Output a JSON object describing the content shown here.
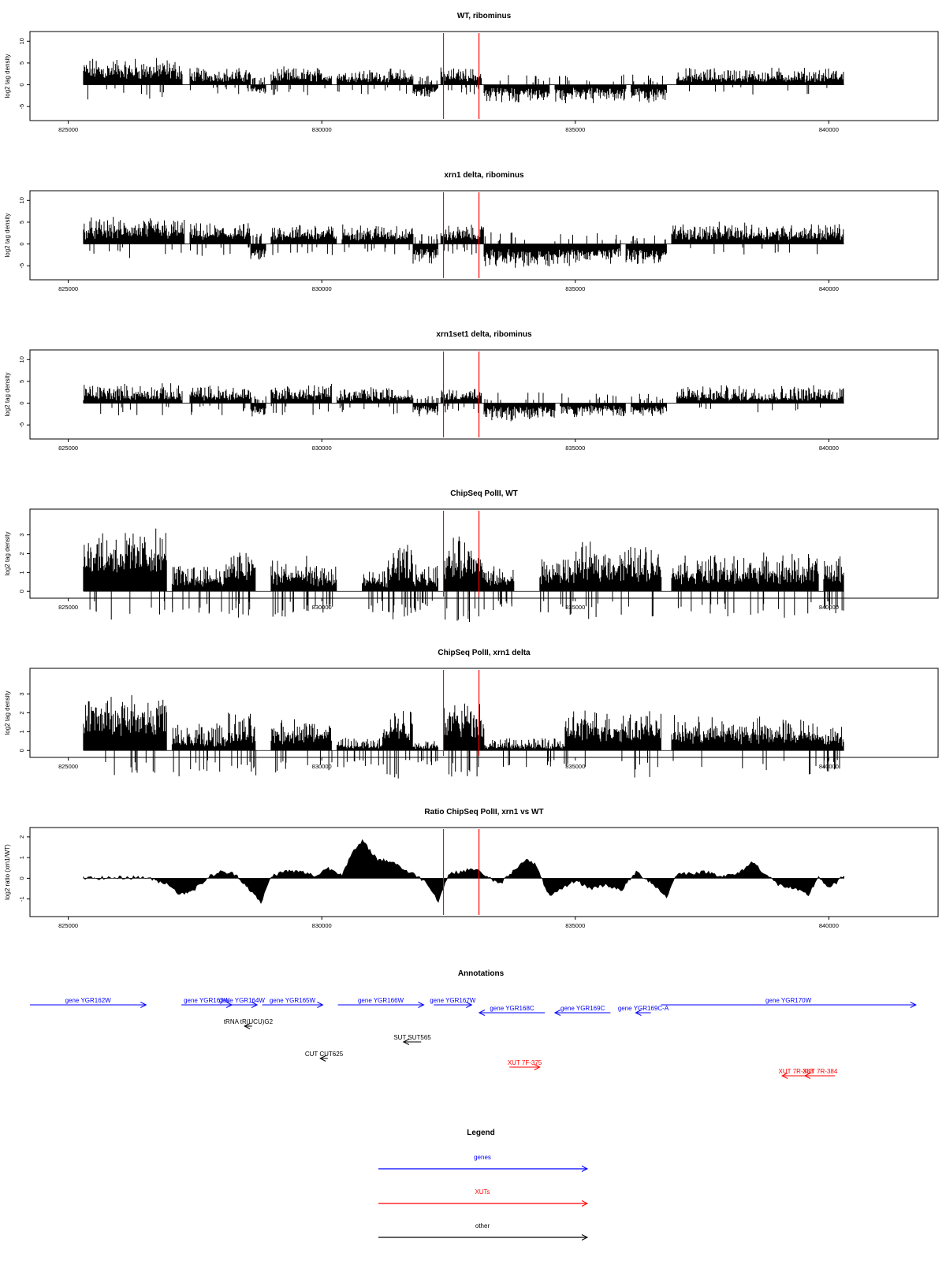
{
  "chart_data": [
    {
      "type": "bar",
      "title": "WT, ribominus",
      "ylabel": "log2 tag density",
      "xlim": [
        824400,
        842000
      ],
      "ylim": [
        -7.5,
        11.5
      ],
      "x_ticks": [
        "825000",
        "830000",
        "835000",
        "840000"
      ],
      "y_ticks": [
        "10",
        "5",
        "0",
        "-5"
      ],
      "marker_lines_x": [
        832400,
        833100
      ],
      "segments": [
        {
          "x": [
            825300,
            827250
          ],
          "sign": 1,
          "base": 3.2,
          "amp": 3.6
        },
        {
          "x": [
            827400,
            828600
          ],
          "sign": 1,
          "base": 1.8,
          "amp": 2.5
        },
        {
          "x": [
            828600,
            828900
          ],
          "sign": -1,
          "base": 1.2,
          "amp": 1.5
        },
        {
          "x": [
            829000,
            830200
          ],
          "sign": 1,
          "base": 1.8,
          "amp": 2.5
        },
        {
          "x": [
            830300,
            831800
          ],
          "sign": 1,
          "base": 1.6,
          "amp": 2.3
        },
        {
          "x": [
            831800,
            832300
          ],
          "sign": -1,
          "base": 1.6,
          "amp": 2.0
        },
        {
          "x": [
            832350,
            833150
          ],
          "sign": 1,
          "base": 2.0,
          "amp": 2.2
        },
        {
          "x": [
            833200,
            834500
          ],
          "sign": -1,
          "base": 2.0,
          "amp": 2.5
        },
        {
          "x": [
            834600,
            836000
          ],
          "sign": -1,
          "base": 2.0,
          "amp": 2.5
        },
        {
          "x": [
            836100,
            836800
          ],
          "sign": -1,
          "base": 2.2,
          "amp": 2.3
        },
        {
          "x": [
            837000,
            840300
          ],
          "sign": 1,
          "base": 1.6,
          "amp": 2.6
        }
      ]
    },
    {
      "type": "bar",
      "title": "xrn1 delta, ribominus",
      "ylabel": "log2 tag density",
      "xlim": [
        824400,
        842000
      ],
      "ylim": [
        -7.5,
        11.5
      ],
      "x_ticks": [
        "825000",
        "830000",
        "835000",
        "840000"
      ],
      "y_ticks": [
        "10",
        "5",
        "0",
        "-5"
      ],
      "marker_lines_x": [
        832400,
        833100
      ],
      "segments": [
        {
          "x": [
            825300,
            827300
          ],
          "sign": 1,
          "base": 3.0,
          "amp": 3.5
        },
        {
          "x": [
            827400,
            828600
          ],
          "sign": 1,
          "base": 2.3,
          "amp": 2.8
        },
        {
          "x": [
            828600,
            828900
          ],
          "sign": -1,
          "base": 2.0,
          "amp": 2.5
        },
        {
          "x": [
            829000,
            830300
          ],
          "sign": 1,
          "base": 2.3,
          "amp": 2.8
        },
        {
          "x": [
            830400,
            831800
          ],
          "sign": 1,
          "base": 2.2,
          "amp": 2.8
        },
        {
          "x": [
            831800,
            832300
          ],
          "sign": -1,
          "base": 2.5,
          "amp": 2.5
        },
        {
          "x": [
            832350,
            833200
          ],
          "sign": 1,
          "base": 2.2,
          "amp": 2.5
        },
        {
          "x": [
            833200,
            834700
          ],
          "sign": -1,
          "base": 3.2,
          "amp": 2.8
        },
        {
          "x": [
            834700,
            835900
          ],
          "sign": -1,
          "base": 2.8,
          "amp": 2.5
        },
        {
          "x": [
            836000,
            836800
          ],
          "sign": -1,
          "base": 3.0,
          "amp": 2.2
        },
        {
          "x": [
            836900,
            840300
          ],
          "sign": 1,
          "base": 2.4,
          "amp": 2.8
        }
      ]
    },
    {
      "type": "bar",
      "title": "xrn1set1 delta, ribominus",
      "ylabel": "log2 tag density",
      "xlim": [
        824400,
        842000
      ],
      "ylim": [
        -7.5,
        11.5
      ],
      "x_ticks": [
        "825000",
        "830000",
        "835000",
        "840000"
      ],
      "y_ticks": [
        "10",
        "5",
        "0",
        "-5"
      ],
      "marker_lines_x": [
        832400,
        833100
      ],
      "segments": [
        {
          "x": [
            825300,
            827250
          ],
          "sign": 1,
          "base": 1.8,
          "amp": 3.0
        },
        {
          "x": [
            827400,
            828600
          ],
          "sign": 1,
          "base": 1.6,
          "amp": 2.8
        },
        {
          "x": [
            828600,
            828900
          ],
          "sign": -1,
          "base": 1.8,
          "amp": 2.0
        },
        {
          "x": [
            829000,
            830200
          ],
          "sign": 1,
          "base": 1.8,
          "amp": 3.0
        },
        {
          "x": [
            830300,
            831800
          ],
          "sign": 1,
          "base": 1.4,
          "amp": 2.6
        },
        {
          "x": [
            831800,
            832300
          ],
          "sign": -1,
          "base": 1.6,
          "amp": 1.8
        },
        {
          "x": [
            832350,
            833150
          ],
          "sign": 1,
          "base": 1.6,
          "amp": 2.2
        },
        {
          "x": [
            833200,
            834600
          ],
          "sign": -1,
          "base": 1.8,
          "amp": 2.5
        },
        {
          "x": [
            834700,
            836000
          ],
          "sign": -1,
          "base": 1.4,
          "amp": 2.2
        },
        {
          "x": [
            836100,
            836800
          ],
          "sign": -1,
          "base": 1.6,
          "amp": 2.2
        },
        {
          "x": [
            837000,
            840300
          ],
          "sign": 1,
          "base": 1.4,
          "amp": 3.0
        }
      ]
    },
    {
      "type": "bar",
      "title": "ChipSeq PolII, WT",
      "ylabel": "log2 tag density",
      "xlim": [
        824400,
        842000
      ],
      "ylim": [
        -0.2,
        4.2
      ],
      "x_ticks": [
        "825000",
        "830000",
        "835000",
        "840000"
      ],
      "y_ticks": [
        "3",
        "2",
        "1",
        "0"
      ],
      "marker_lines_x": [
        832400,
        833100
      ],
      "segments": [
        {
          "x": [
            825300,
            826950
          ],
          "sign": 1,
          "base": 2.3,
          "amp": 1.3
        },
        {
          "x": [
            827050,
            828100
          ],
          "sign": 1,
          "base": 0.7,
          "amp": 0.9
        },
        {
          "x": [
            828100,
            828700
          ],
          "sign": 1,
          "base": 1.1,
          "amp": 1.4
        },
        {
          "x": [
            829000,
            829700
          ],
          "sign": 1,
          "base": 0.8,
          "amp": 1.1
        },
        {
          "x": [
            829700,
            830300
          ],
          "sign": 1,
          "base": 0.7,
          "amp": 0.8
        },
        {
          "x": [
            830800,
            831400
          ],
          "sign": 1,
          "base": 0.5,
          "amp": 0.8
        },
        {
          "x": [
            831300,
            831800
          ],
          "sign": 1,
          "base": 1.3,
          "amp": 1.4
        },
        {
          "x": [
            831800,
            832300
          ],
          "sign": 1,
          "base": 0.7,
          "amp": 0.8
        },
        {
          "x": [
            832400,
            833200
          ],
          "sign": 1,
          "base": 1.6,
          "amp": 1.5
        },
        {
          "x": [
            833200,
            833800
          ],
          "sign": 1,
          "base": 0.6,
          "amp": 0.8
        },
        {
          "x": [
            834300,
            835000
          ],
          "sign": 1,
          "base": 1.0,
          "amp": 1.0
        },
        {
          "x": [
            835000,
            836700
          ],
          "sign": 1,
          "base": 1.4,
          "amp": 1.3
        },
        {
          "x": [
            836900,
            838100
          ],
          "sign": 1,
          "base": 1.0,
          "amp": 1.1
        },
        {
          "x": [
            838100,
            839800
          ],
          "sign": 1,
          "base": 1.0,
          "amp": 1.2
        },
        {
          "x": [
            839900,
            840300
          ],
          "sign": 1,
          "base": 1.0,
          "amp": 1.0
        }
      ]
    },
    {
      "type": "bar",
      "title": "ChipSeq PolII, xrn1 delta",
      "ylabel": "log2 tag density",
      "xlim": [
        824400,
        842000
      ],
      "ylim": [
        -0.2,
        4.2
      ],
      "x_ticks": [
        "825000",
        "830000",
        "835000",
        "840000"
      ],
      "y_ticks": [
        "3",
        "2",
        "1",
        "0"
      ],
      "marker_lines_x": [
        832400,
        833100
      ],
      "segments": [
        {
          "x": [
            825300,
            826950
          ],
          "sign": 1,
          "base": 2.1,
          "amp": 1.1
        },
        {
          "x": [
            827050,
            828100
          ],
          "sign": 1,
          "base": 0.4,
          "amp": 1.2
        },
        {
          "x": [
            828100,
            828700
          ],
          "sign": 1,
          "base": 0.9,
          "amp": 1.2
        },
        {
          "x": [
            829000,
            830200
          ],
          "sign": 1,
          "base": 0.9,
          "amp": 1.0
        },
        {
          "x": [
            830300,
            831200
          ],
          "sign": 1,
          "base": 0.2,
          "amp": 0.5
        },
        {
          "x": [
            831200,
            831800
          ],
          "sign": 1,
          "base": 1.2,
          "amp": 1.4
        },
        {
          "x": [
            831800,
            832300
          ],
          "sign": 1,
          "base": 0.2,
          "amp": 0.4
        },
        {
          "x": [
            832400,
            833200
          ],
          "sign": 1,
          "base": 1.8,
          "amp": 1.2
        },
        {
          "x": [
            833200,
            834800
          ],
          "sign": 1,
          "base": 0.2,
          "amp": 0.5
        },
        {
          "x": [
            834800,
            836700
          ],
          "sign": 1,
          "base": 1.2,
          "amp": 1.2
        },
        {
          "x": [
            836900,
            839900
          ],
          "sign": 1,
          "base": 0.9,
          "amp": 1.0
        },
        {
          "x": [
            839900,
            840300
          ],
          "sign": 1,
          "base": 0.6,
          "amp": 0.8
        }
      ]
    },
    {
      "type": "area",
      "title": "Ratio ChipSeq PolII, xrn1 vs WT",
      "ylabel": "log2 ratio (xrn1/WT)",
      "xlim": [
        824400,
        842000
      ],
      "ylim": [
        -1.7,
        2.3
      ],
      "x_ticks": [
        "825000",
        "830000",
        "835000",
        "840000"
      ],
      "y_ticks": [
        "2",
        "1",
        "0",
        "-1"
      ],
      "marker_lines_x": [
        832400,
        833100
      ],
      "x": [
        825300,
        826500,
        827000,
        827200,
        827500,
        827800,
        828000,
        828300,
        828600,
        828800,
        829000,
        829300,
        829600,
        829900,
        830100,
        830400,
        830600,
        830800,
        831100,
        831400,
        831700,
        831900,
        832100,
        832300,
        832500,
        832800,
        833000,
        833200,
        833500,
        833800,
        834000,
        834200,
        834500,
        834800,
        835000,
        835300,
        835600,
        835900,
        836200,
        836500,
        836800,
        837000,
        837300,
        837600,
        837900,
        838200,
        838500,
        838700,
        839000,
        839300,
        839600,
        839800,
        840000,
        840300
      ],
      "y": [
        0,
        0.05,
        -0.3,
        -0.8,
        -0.5,
        0.1,
        0.3,
        0.2,
        -0.6,
        -1.2,
        0.1,
        0.35,
        0.3,
        0.1,
        0.5,
        0.2,
        1.2,
        1.8,
        0.9,
        0.8,
        0.3,
        0.1,
        -0.3,
        -1.1,
        0.2,
        0.35,
        0.45,
        0.2,
        -0.3,
        0.4,
        0.9,
        0.7,
        -0.9,
        -0.4,
        -0.1,
        -0.5,
        -0.3,
        -0.6,
        0.3,
        -0.2,
        -0.9,
        0.2,
        0.25,
        0.3,
        0.1,
        0.2,
        0.8,
        0.3,
        -0.3,
        -0.5,
        -0.8,
        0.1,
        -0.5,
        0.1
      ]
    },
    {
      "type": "annotation_track",
      "title": "Annotations",
      "xlim": [
        824400,
        842000
      ],
      "features": [
        {
          "label": "gene YGR162W",
          "x1": 824400,
          "x2": 826700,
          "dir": "right",
          "row": 0,
          "kind": "gene"
        },
        {
          "label": "gene YGR163W",
          "x1": 827400,
          "x2": 828400,
          "dir": "right",
          "row": 0,
          "kind": "gene"
        },
        {
          "label": "gene YGR164W",
          "x1": 828300,
          "x2": 828900,
          "dir": "right",
          "row": 0,
          "kind": "gene"
        },
        {
          "label": "gene YGR165W",
          "x1": 829000,
          "x2": 830200,
          "dir": "right",
          "row": 0,
          "kind": "gene"
        },
        {
          "label": "gene YGR166W",
          "x1": 830500,
          "x2": 832200,
          "dir": "right",
          "row": 0,
          "kind": "gene"
        },
        {
          "label": "gene YGR167W",
          "x1": 832400,
          "x2": 833150,
          "dir": "right",
          "row": 0,
          "kind": "gene"
        },
        {
          "label": "gene YGR168C",
          "x1": 833300,
          "x2": 834600,
          "dir": "left",
          "row": 1,
          "kind": "gene"
        },
        {
          "label": "gene YGR169C",
          "x1": 834800,
          "x2": 835900,
          "dir": "left",
          "row": 1,
          "kind": "gene"
        },
        {
          "label": "gene YGR169C-A",
          "x1": 836400,
          "x2": 836700,
          "dir": "left",
          "row": 1,
          "kind": "gene"
        },
        {
          "label": "gene YGR170W",
          "x1": 836900,
          "x2": 841950,
          "dir": "right",
          "row": 0,
          "kind": "gene"
        },
        {
          "label": "tRNA tR(UCU)G2",
          "x1": 828650,
          "x2": 828800,
          "dir": "left",
          "row": 2,
          "kind": "other"
        },
        {
          "label": "SUT SUT565",
          "x1": 831800,
          "x2": 832150,
          "dir": "left",
          "row": 3,
          "kind": "other"
        },
        {
          "label": "CUT CUT625",
          "x1": 830150,
          "x2": 830300,
          "dir": "left",
          "row": 4,
          "kind": "other"
        },
        {
          "label": "XUT 7F-375",
          "x1": 833900,
          "x2": 834500,
          "dir": "right",
          "row": 5,
          "kind": "xut"
        },
        {
          "label": "XUT 7R-383",
          "x1": 839300,
          "x2": 839850,
          "dir": "left",
          "row": 6,
          "kind": "xut"
        },
        {
          "label": "XUT 7R-384",
          "x1": 839750,
          "x2": 840350,
          "dir": "left",
          "row": 6,
          "kind": "xut"
        }
      ]
    },
    {
      "type": "legend",
      "title": "Legend",
      "entries": [
        {
          "label": "genes",
          "color": "#0000ff"
        },
        {
          "label": "XUTs",
          "color": "#ff0000"
        },
        {
          "label": "other",
          "color": "#000000"
        }
      ]
    }
  ],
  "colors": {
    "data": "#000000",
    "marker_line": "#ff0000",
    "gene": "#0000ff",
    "xut": "#ff0000",
    "other": "#000000"
  }
}
